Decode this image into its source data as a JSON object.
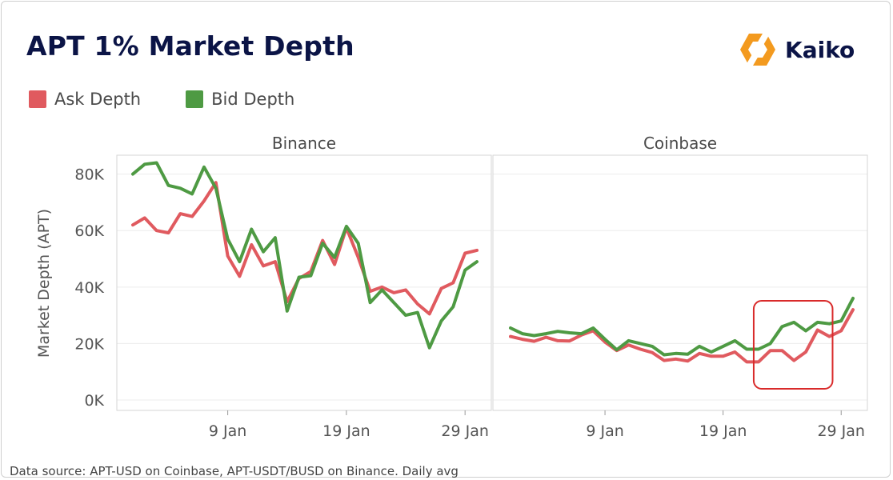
{
  "title": "APT 1% Market Depth",
  "brand": {
    "name": "Kaiko",
    "icon": "kaiko-hexagon-logo-icon",
    "color": "#f39a1f"
  },
  "legend": [
    {
      "label": "Ask Depth",
      "color": "#e05a5f"
    },
    {
      "label": "Bid Depth",
      "color": "#4e9a43"
    }
  ],
  "source_note": "Data source: APT-USD on Coinbase, APT-USDT/BUSD on Binance. Daily avg",
  "chart_data": [
    {
      "type": "line",
      "panel": "Binance",
      "ylabel": "Market Depth (APT)",
      "ylim": [
        0,
        85000
      ],
      "yticks": [
        "0K",
        "20K",
        "40K",
        "60K",
        "80K"
      ],
      "xticks": [
        "9 Jan",
        "19 Jan",
        "29 Jan"
      ],
      "x_start": "2023-01-01",
      "grid": true,
      "series": [
        {
          "name": "Ask Depth",
          "color": "#e05a5f",
          "values": [
            62000,
            64500,
            60000,
            59200,
            66000,
            65000,
            70500,
            77000,
            51000,
            43800,
            55000,
            47500,
            49000,
            34800,
            43000,
            45500,
            56500,
            48000,
            61000,
            50500,
            38500,
            40000,
            38000,
            39000,
            34000,
            30500,
            39500,
            41500,
            52000,
            53000
          ]
        },
        {
          "name": "Bid Depth",
          "color": "#4e9a43",
          "values": [
            80000,
            83500,
            84000,
            76000,
            75000,
            73000,
            82500,
            75000,
            57000,
            49000,
            60500,
            52500,
            57500,
            31500,
            43500,
            44000,
            55500,
            50500,
            61500,
            55500,
            34500,
            39000,
            34500,
            30000,
            31000,
            18500,
            28000,
            33000,
            46000,
            49000
          ]
        }
      ]
    },
    {
      "type": "line",
      "panel": "Coinbase",
      "ylim": [
        0,
        85000
      ],
      "xticks": [
        "9 Jan",
        "19 Jan",
        "29 Jan"
      ],
      "x_start": "2023-01-01",
      "grid": true,
      "annotation": {
        "type": "highlight-box",
        "from": "2023-01-22",
        "to": "2023-01-28",
        "color": "#d92b2b"
      },
      "series": [
        {
          "name": "Ask Depth",
          "color": "#e05a5f",
          "values": [
            22500,
            21500,
            20800,
            22200,
            21000,
            20900,
            23000,
            24500,
            20500,
            17500,
            19500,
            18000,
            16800,
            14000,
            14500,
            13800,
            16500,
            15500,
            15500,
            17000,
            13500,
            13500,
            17500,
            17500,
            14000,
            17000,
            24800,
            22500,
            24500,
            32000
          ]
        },
        {
          "name": "Bid Depth",
          "color": "#4e9a43",
          "values": [
            25500,
            23500,
            22800,
            23500,
            24300,
            23800,
            23500,
            25500,
            21500,
            17800,
            21000,
            20000,
            19000,
            16000,
            16500,
            16200,
            19000,
            17000,
            19000,
            21000,
            18000,
            18000,
            20000,
            26000,
            27500,
            24500,
            27500,
            27000,
            28000,
            36000
          ]
        }
      ]
    }
  ]
}
